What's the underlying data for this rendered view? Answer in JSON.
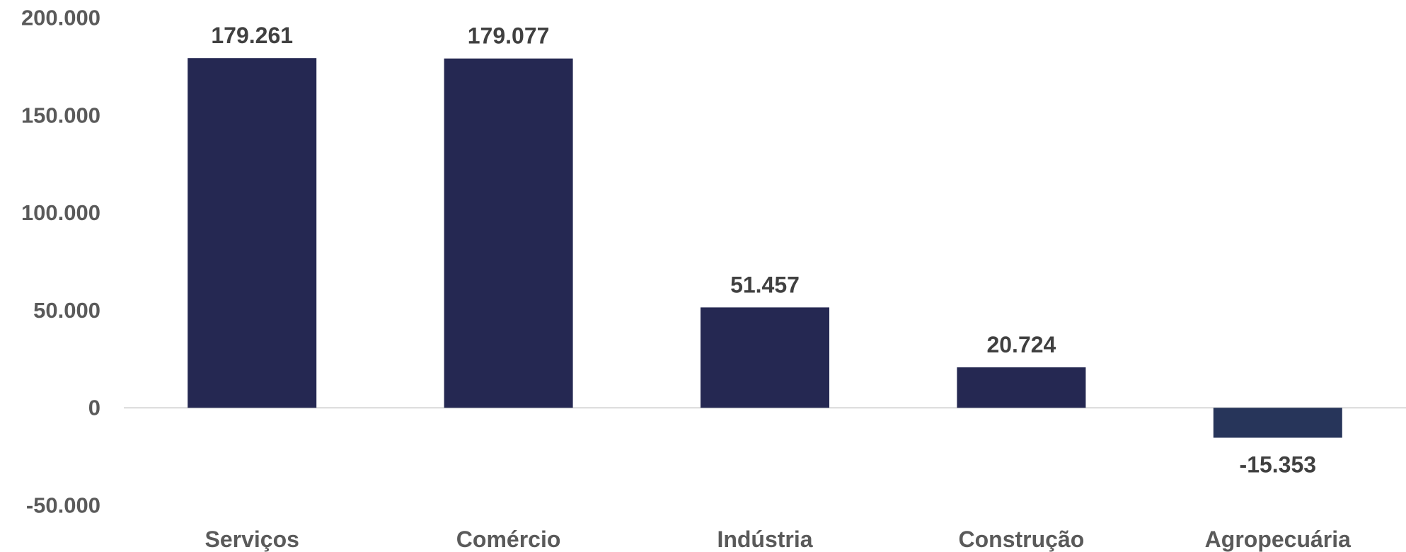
{
  "chart_data": {
    "type": "bar",
    "categories": [
      "Serviços",
      "Comércio",
      "Indústria",
      "Construção",
      "Agropecuária"
    ],
    "values": [
      179261,
      179077,
      51457,
      20724,
      -15353
    ],
    "value_labels": [
      "179.261",
      "179.077",
      "51.457",
      "20.724",
      "-15.353"
    ],
    "ytick_labels": [
      "200.000",
      "150.000",
      "100.000",
      "50.000",
      "0",
      "-50.000"
    ],
    "yticks": [
      200000,
      150000,
      100000,
      50000,
      0,
      -50000
    ],
    "ylim": [
      -50000,
      200000
    ],
    "title": "",
    "xlabel": "",
    "ylabel": "",
    "grid": false,
    "legend": "none",
    "colors": {
      "bar": "#252852",
      "bar_negative": "#27355a",
      "zero_line": "#d9d9d9",
      "axis_text": "#5a5a5a",
      "data_label_text": "#404040"
    }
  }
}
